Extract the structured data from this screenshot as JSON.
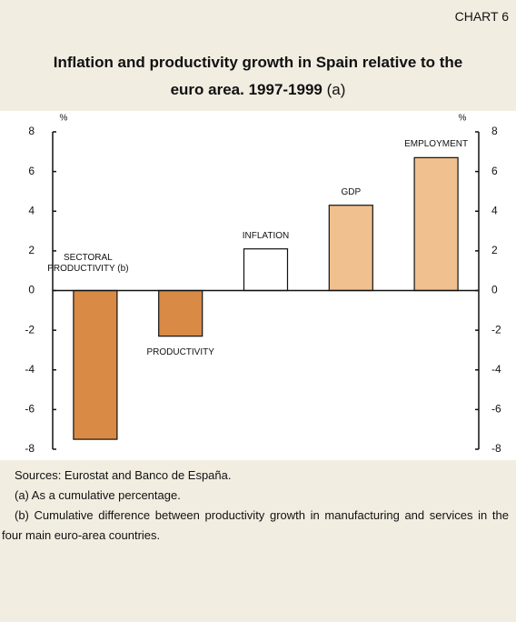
{
  "chart_data": {
    "type": "bar",
    "chart_number": "CHART 6",
    "title": "Inflation and productivity growth in Spain relative to the euro area. 1997-1999",
    "title_note": "(a)",
    "categories": [
      "SECTORAL PRODUCTIVITY (b)",
      "PRODUCTIVITY",
      "INFLATION",
      "GDP",
      "EMPLOYMENT"
    ],
    "values": [
      -7.5,
      -2.3,
      2.1,
      4.3,
      6.7
    ],
    "colors": [
      "#d98a45",
      "#d98a45",
      "#ffffff",
      "#f0c08f",
      "#f0c08f"
    ],
    "ylabel": "%",
    "y2label": "%",
    "ylim": [
      -8,
      8
    ],
    "yticks": [
      -8,
      -6,
      -4,
      -2,
      0,
      2,
      4,
      6,
      8
    ],
    "y2lim": [
      -8,
      8
    ],
    "y2ticks": [
      -8,
      -6,
      -4,
      -2,
      0,
      2,
      4,
      6,
      8
    ],
    "grid": false,
    "notes": [
      "Sources: Eurostat and Banco de España.",
      "(a) As a cumulative percentage.",
      "(b) Cumulative difference between productivity growth in manufacturing and services in the four main euro-area countries."
    ]
  }
}
